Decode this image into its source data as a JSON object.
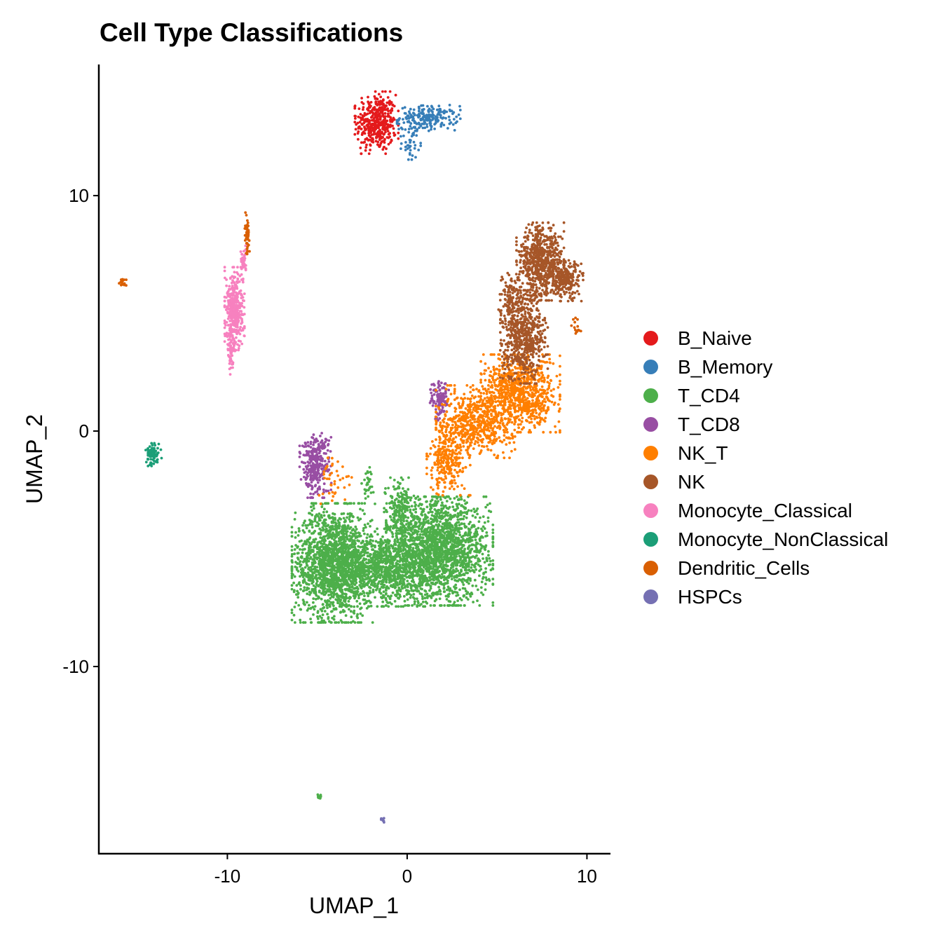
{
  "chart_data": {
    "type": "scatter",
    "title": "Cell Type Classifications",
    "xlabel": "UMAP_1",
    "ylabel": "UMAP_2",
    "xlim": [
      -17.15,
      11.27
    ],
    "ylim": [
      -17.95,
      15.57
    ],
    "xticks": [
      -10,
      0,
      10
    ],
    "yticks": [
      -10,
      0,
      10
    ],
    "xtick_labels": [
      "-10",
      "0",
      "10"
    ],
    "ytick_labels": [
      "-10",
      "0",
      "10"
    ],
    "grid": false,
    "legend_position": "right",
    "series": [
      {
        "name": "B_Naive",
        "color": "#E41A1C",
        "clusters": [
          {
            "cx": -1.7,
            "cy": 13.1,
            "sx": 0.55,
            "sy": 0.6,
            "n": 420
          }
        ]
      },
      {
        "name": "B_Memory",
        "color": "#377EB8",
        "clusters": [
          {
            "cx": 1.2,
            "cy": 13.3,
            "sx": 0.8,
            "sy": 0.25,
            "n": 200
          },
          {
            "cx": 0.2,
            "cy": 12.3,
            "sx": 0.25,
            "sy": 0.35,
            "n": 40
          }
        ]
      },
      {
        "name": "T_CD4",
        "color": "#4DAF4A",
        "clusters": [
          {
            "cx": -4.1,
            "cy": -5.6,
            "sx": 1.05,
            "sy": 1.15,
            "n": 1700
          },
          {
            "cx": 1.8,
            "cy": -5.1,
            "sx": 1.35,
            "sy": 1.05,
            "n": 1900
          },
          {
            "cx": -1.2,
            "cy": -5.8,
            "sx": 1.1,
            "sy": 0.75,
            "n": 900
          },
          {
            "cx": -0.4,
            "cy": -3.3,
            "sx": 0.4,
            "sy": 0.6,
            "n": 200
          },
          {
            "cx": -2.2,
            "cy": -2.2,
            "sx": 0.15,
            "sy": 0.3,
            "n": 30
          },
          {
            "cx": -4.9,
            "cy": -15.5,
            "sx": 0.06,
            "sy": 0.06,
            "n": 10
          }
        ]
      },
      {
        "name": "T_CD8",
        "color": "#984EA3",
        "clusters": [
          {
            "cx": -5.1,
            "cy": -1.4,
            "sx": 0.4,
            "sy": 0.65,
            "n": 320
          },
          {
            "cx": 1.8,
            "cy": 1.3,
            "sx": 0.25,
            "sy": 0.4,
            "n": 110
          }
        ]
      },
      {
        "name": "NK_T",
        "color": "#FF7F00",
        "clusters": [
          {
            "cx": 6.3,
            "cy": 1.6,
            "sx": 1.0,
            "sy": 0.75,
            "n": 800
          },
          {
            "cx": 3.8,
            "cy": 0.4,
            "sx": 1.0,
            "sy": 0.7,
            "n": 600
          },
          {
            "cx": 2.3,
            "cy": -1.3,
            "sx": 0.55,
            "sy": 0.65,
            "n": 250
          },
          {
            "cx": -4.1,
            "cy": -2.1,
            "sx": 0.6,
            "sy": 0.5,
            "n": 40
          }
        ]
      },
      {
        "name": "NK",
        "color": "#A65628",
        "clusters": [
          {
            "cx": 7.4,
            "cy": 7.2,
            "sx": 0.6,
            "sy": 0.75,
            "n": 650
          },
          {
            "cx": 8.8,
            "cy": 6.4,
            "sx": 0.45,
            "sy": 0.4,
            "n": 230
          },
          {
            "cx": 6.5,
            "cy": 4.0,
            "sx": 0.6,
            "sy": 0.9,
            "n": 600
          },
          {
            "cx": 5.8,
            "cy": 5.5,
            "sx": 0.35,
            "sy": 0.55,
            "n": 120
          }
        ]
      },
      {
        "name": "Monocyte_Classical",
        "color": "#F781BF",
        "clusters": [
          {
            "cx": -9.6,
            "cy": 5.2,
            "sx": 0.25,
            "sy": 0.8,
            "n": 380
          },
          {
            "cx": -9.8,
            "cy": 3.4,
            "sx": 0.1,
            "sy": 0.45,
            "n": 60
          },
          {
            "cx": -9.1,
            "cy": 7.1,
            "sx": 0.08,
            "sy": 0.35,
            "n": 40
          }
        ]
      },
      {
        "name": "Monocyte_NonClassical",
        "color": "#1B9E77",
        "clusters": [
          {
            "cx": -14.1,
            "cy": -1.0,
            "sx": 0.2,
            "sy": 0.22,
            "n": 80
          }
        ]
      },
      {
        "name": "Dendritic_Cells",
        "color": "#D95F02",
        "clusters": [
          {
            "cx": -8.9,
            "cy": 8.4,
            "sx": 0.06,
            "sy": 0.4,
            "n": 60
          },
          {
            "cx": -15.8,
            "cy": 6.3,
            "sx": 0.1,
            "sy": 0.1,
            "n": 15
          },
          {
            "cx": 9.4,
            "cy": 4.4,
            "sx": 0.12,
            "sy": 0.2,
            "n": 15
          }
        ]
      },
      {
        "name": "HSPCs",
        "color": "#7570B3",
        "clusters": [
          {
            "cx": -1.4,
            "cy": -16.5,
            "sx": 0.06,
            "sy": 0.06,
            "n": 8
          }
        ]
      }
    ]
  }
}
